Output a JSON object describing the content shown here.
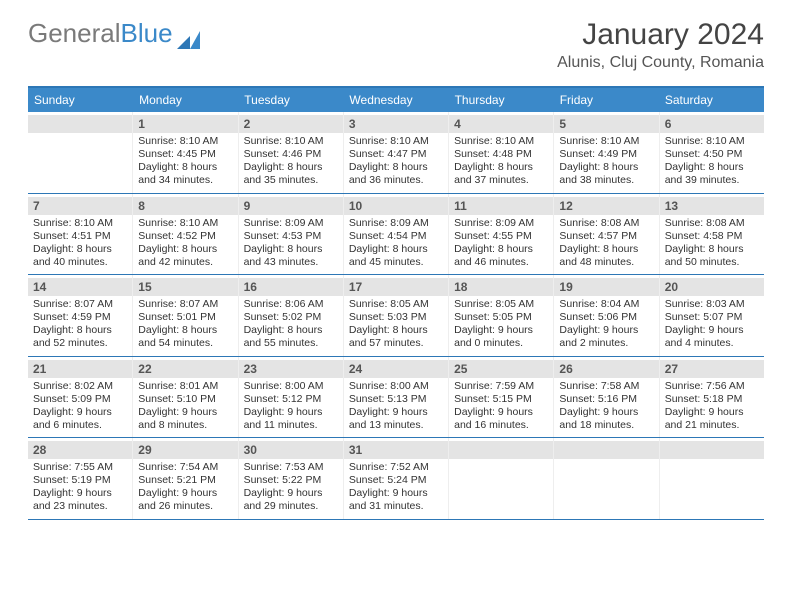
{
  "logo": {
    "text1": "General",
    "text2": "Blue"
  },
  "title": "January 2024",
  "location": "Alunis, Cluj County, Romania",
  "colors": {
    "header_bg": "#3b89c9",
    "border": "#2d77b6",
    "daynum_bg": "#e4e4e4",
    "text": "#333333",
    "logo_gray": "#7a7a7a",
    "logo_blue": "#3b89c9"
  },
  "day_names": [
    "Sunday",
    "Monday",
    "Tuesday",
    "Wednesday",
    "Thursday",
    "Friday",
    "Saturday"
  ],
  "weeks": [
    [
      {
        "n": "",
        "lines": []
      },
      {
        "n": "1",
        "lines": [
          "Sunrise: 8:10 AM",
          "Sunset: 4:45 PM",
          "Daylight: 8 hours",
          "and 34 minutes."
        ]
      },
      {
        "n": "2",
        "lines": [
          "Sunrise: 8:10 AM",
          "Sunset: 4:46 PM",
          "Daylight: 8 hours",
          "and 35 minutes."
        ]
      },
      {
        "n": "3",
        "lines": [
          "Sunrise: 8:10 AM",
          "Sunset: 4:47 PM",
          "Daylight: 8 hours",
          "and 36 minutes."
        ]
      },
      {
        "n": "4",
        "lines": [
          "Sunrise: 8:10 AM",
          "Sunset: 4:48 PM",
          "Daylight: 8 hours",
          "and 37 minutes."
        ]
      },
      {
        "n": "5",
        "lines": [
          "Sunrise: 8:10 AM",
          "Sunset: 4:49 PM",
          "Daylight: 8 hours",
          "and 38 minutes."
        ]
      },
      {
        "n": "6",
        "lines": [
          "Sunrise: 8:10 AM",
          "Sunset: 4:50 PM",
          "Daylight: 8 hours",
          "and 39 minutes."
        ]
      }
    ],
    [
      {
        "n": "7",
        "lines": [
          "Sunrise: 8:10 AM",
          "Sunset: 4:51 PM",
          "Daylight: 8 hours",
          "and 40 minutes."
        ]
      },
      {
        "n": "8",
        "lines": [
          "Sunrise: 8:10 AM",
          "Sunset: 4:52 PM",
          "Daylight: 8 hours",
          "and 42 minutes."
        ]
      },
      {
        "n": "9",
        "lines": [
          "Sunrise: 8:09 AM",
          "Sunset: 4:53 PM",
          "Daylight: 8 hours",
          "and 43 minutes."
        ]
      },
      {
        "n": "10",
        "lines": [
          "Sunrise: 8:09 AM",
          "Sunset: 4:54 PM",
          "Daylight: 8 hours",
          "and 45 minutes."
        ]
      },
      {
        "n": "11",
        "lines": [
          "Sunrise: 8:09 AM",
          "Sunset: 4:55 PM",
          "Daylight: 8 hours",
          "and 46 minutes."
        ]
      },
      {
        "n": "12",
        "lines": [
          "Sunrise: 8:08 AM",
          "Sunset: 4:57 PM",
          "Daylight: 8 hours",
          "and 48 minutes."
        ]
      },
      {
        "n": "13",
        "lines": [
          "Sunrise: 8:08 AM",
          "Sunset: 4:58 PM",
          "Daylight: 8 hours",
          "and 50 minutes."
        ]
      }
    ],
    [
      {
        "n": "14",
        "lines": [
          "Sunrise: 8:07 AM",
          "Sunset: 4:59 PM",
          "Daylight: 8 hours",
          "and 52 minutes."
        ]
      },
      {
        "n": "15",
        "lines": [
          "Sunrise: 8:07 AM",
          "Sunset: 5:01 PM",
          "Daylight: 8 hours",
          "and 54 minutes."
        ]
      },
      {
        "n": "16",
        "lines": [
          "Sunrise: 8:06 AM",
          "Sunset: 5:02 PM",
          "Daylight: 8 hours",
          "and 55 minutes."
        ]
      },
      {
        "n": "17",
        "lines": [
          "Sunrise: 8:05 AM",
          "Sunset: 5:03 PM",
          "Daylight: 8 hours",
          "and 57 minutes."
        ]
      },
      {
        "n": "18",
        "lines": [
          "Sunrise: 8:05 AM",
          "Sunset: 5:05 PM",
          "Daylight: 9 hours",
          "and 0 minutes."
        ]
      },
      {
        "n": "19",
        "lines": [
          "Sunrise: 8:04 AM",
          "Sunset: 5:06 PM",
          "Daylight: 9 hours",
          "and 2 minutes."
        ]
      },
      {
        "n": "20",
        "lines": [
          "Sunrise: 8:03 AM",
          "Sunset: 5:07 PM",
          "Daylight: 9 hours",
          "and 4 minutes."
        ]
      }
    ],
    [
      {
        "n": "21",
        "lines": [
          "Sunrise: 8:02 AM",
          "Sunset: 5:09 PM",
          "Daylight: 9 hours",
          "and 6 minutes."
        ]
      },
      {
        "n": "22",
        "lines": [
          "Sunrise: 8:01 AM",
          "Sunset: 5:10 PM",
          "Daylight: 9 hours",
          "and 8 minutes."
        ]
      },
      {
        "n": "23",
        "lines": [
          "Sunrise: 8:00 AM",
          "Sunset: 5:12 PM",
          "Daylight: 9 hours",
          "and 11 minutes."
        ]
      },
      {
        "n": "24",
        "lines": [
          "Sunrise: 8:00 AM",
          "Sunset: 5:13 PM",
          "Daylight: 9 hours",
          "and 13 minutes."
        ]
      },
      {
        "n": "25",
        "lines": [
          "Sunrise: 7:59 AM",
          "Sunset: 5:15 PM",
          "Daylight: 9 hours",
          "and 16 minutes."
        ]
      },
      {
        "n": "26",
        "lines": [
          "Sunrise: 7:58 AM",
          "Sunset: 5:16 PM",
          "Daylight: 9 hours",
          "and 18 minutes."
        ]
      },
      {
        "n": "27",
        "lines": [
          "Sunrise: 7:56 AM",
          "Sunset: 5:18 PM",
          "Daylight: 9 hours",
          "and 21 minutes."
        ]
      }
    ],
    [
      {
        "n": "28",
        "lines": [
          "Sunrise: 7:55 AM",
          "Sunset: 5:19 PM",
          "Daylight: 9 hours",
          "and 23 minutes."
        ]
      },
      {
        "n": "29",
        "lines": [
          "Sunrise: 7:54 AM",
          "Sunset: 5:21 PM",
          "Daylight: 9 hours",
          "and 26 minutes."
        ]
      },
      {
        "n": "30",
        "lines": [
          "Sunrise: 7:53 AM",
          "Sunset: 5:22 PM",
          "Daylight: 9 hours",
          "and 29 minutes."
        ]
      },
      {
        "n": "31",
        "lines": [
          "Sunrise: 7:52 AM",
          "Sunset: 5:24 PM",
          "Daylight: 9 hours",
          "and 31 minutes."
        ]
      },
      {
        "n": "",
        "lines": []
      },
      {
        "n": "",
        "lines": []
      },
      {
        "n": "",
        "lines": []
      }
    ]
  ]
}
